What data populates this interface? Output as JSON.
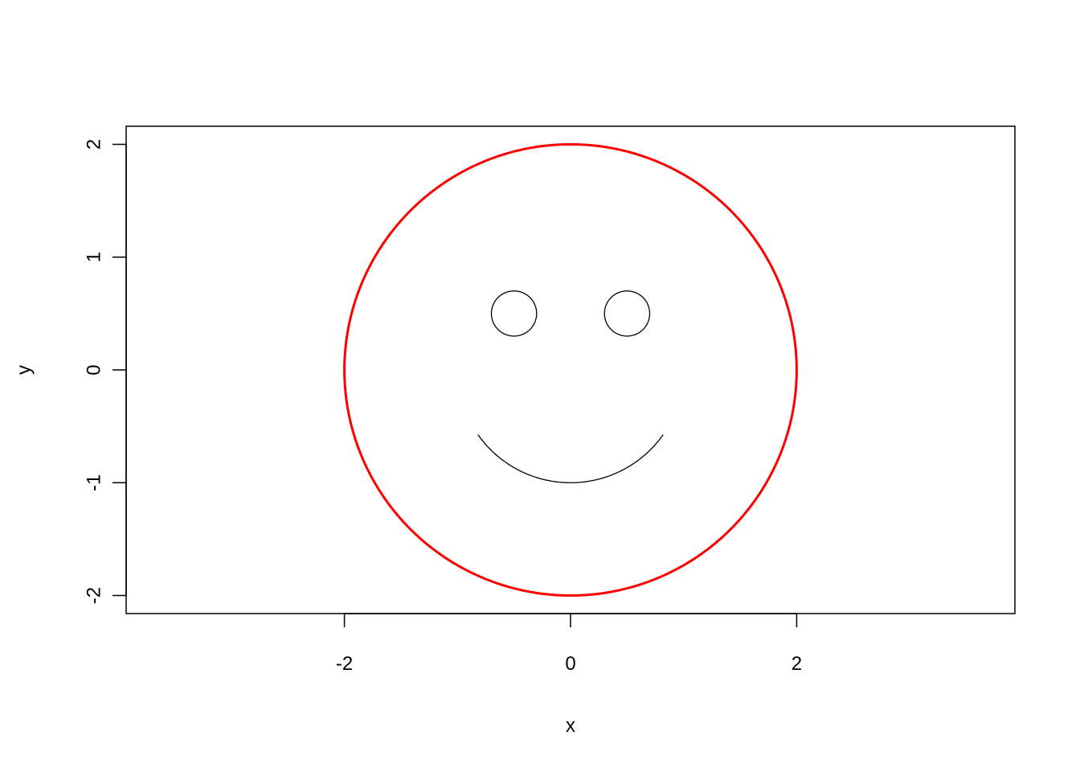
{
  "chart_data": {
    "type": "line",
    "xlabel": "x",
    "ylabel": "y",
    "xlim": [
      -3.93,
      3.93
    ],
    "ylim": [
      -2.16,
      2.16
    ],
    "x_ticks": [
      -2,
      0,
      2
    ],
    "y_ticks": [
      -2,
      -1,
      0,
      1,
      2
    ],
    "x_tick_labels": [
      "-2",
      "0",
      "2"
    ],
    "y_tick_labels": [
      "-2",
      "-1",
      "0",
      "1",
      "2"
    ],
    "grid": false,
    "legend": "none",
    "series": [
      {
        "shape": "circle",
        "center": [
          0,
          0
        ],
        "radius": 2,
        "color": "#ff0000",
        "line_width": 3
      },
      {
        "shape": "circle",
        "center": [
          -0.5,
          0.5
        ],
        "radius": 0.2,
        "color": "#000000",
        "line_width": 1.3
      },
      {
        "shape": "circle",
        "center": [
          0.5,
          0.5
        ],
        "radius": 0.2,
        "color": "#000000",
        "line_width": 1.3
      },
      {
        "shape": "arc",
        "center": [
          0,
          0
        ],
        "radius": 1,
        "start_deg": 215,
        "end_deg": 325,
        "color": "#000000",
        "line_width": 1.3
      }
    ]
  }
}
